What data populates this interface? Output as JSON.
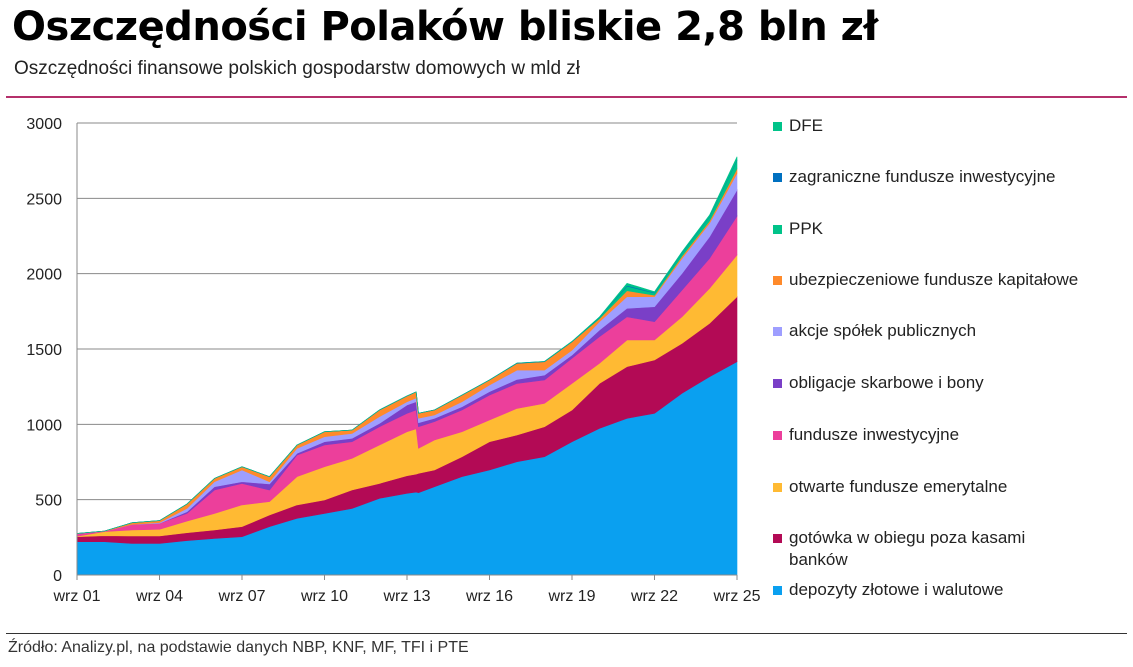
{
  "header": {
    "title": "Oszczędności Polaków bliskie 2,8 bln zł",
    "subtitle": "Oszczędności finansowe polskich gospodarstw domowych w mld zł"
  },
  "footer": {
    "source": "Źródło: Analizy.pl, na podstawie danych NBP, KNF, MF, TFI i PTE"
  },
  "chart_data": {
    "type": "area",
    "stacked": true,
    "title": "Oszczędności Polaków bliskie 2,8 bln zł",
    "subtitle": "Oszczędności finansowe polskich gospodarstw domowych w mld zł",
    "ylim": [
      0,
      3000
    ],
    "yticks": [
      "0",
      "500",
      "1000",
      "1500",
      "2000",
      "2500",
      "3000"
    ],
    "ytick_values": [
      0,
      500,
      1000,
      1500,
      2000,
      2500,
      3000
    ],
    "xticks": [
      "wrz 01",
      "wrz 04",
      "wrz 07",
      "wrz 10",
      "wrz 13",
      "wrz 16",
      "wrz 19",
      "wrz 22",
      "wrz 25"
    ],
    "xtick_dates": [
      "2001-09",
      "2004-09",
      "2007-09",
      "2010-09",
      "2013-09",
      "2016-09",
      "2019-09",
      "2022-09",
      "2025-09"
    ],
    "grid": "horizontal",
    "legend_position": "right",
    "x": [
      "2001-09",
      "2002-09",
      "2003-09",
      "2004-09",
      "2005-09",
      "2006-09",
      "2007-09",
      "2008-09",
      "2009-09",
      "2010-09",
      "2011-09",
      "2012-09",
      "2013-09",
      "2014-01",
      "2014-02",
      "2014-09",
      "2015-09",
      "2016-09",
      "2017-09",
      "2018-09",
      "2019-09",
      "2020-09",
      "2021-09",
      "2022-09",
      "2023-09",
      "2024-09",
      "2025-09"
    ],
    "series": [
      {
        "name": "depozyty złotowe i walutowe",
        "color": "#0aa0f0",
        "values": [
          221,
          221,
          210,
          210,
          228,
          243,
          254,
          321,
          376,
          409,
          442,
          509,
          542,
          550,
          546,
          586,
          653,
          697,
          752,
          785,
          885,
          973,
          1040,
          1073,
          1206,
          1316,
          1416
        ]
      },
      {
        "name": "gotówka w obiegu poza kasami banków",
        "color": "#b30a55",
        "values": [
          33,
          40,
          49,
          49,
          53,
          56,
          67,
          77,
          89,
          89,
          122,
          99,
          117,
          120,
          129,
          111,
          132,
          188,
          177,
          199,
          210,
          299,
          343,
          354,
          331,
          354,
          431
        ]
      },
      {
        "name": "otwarte fundusze emerytalne",
        "color": "#ffba33",
        "values": [
          3,
          27,
          40,
          44,
          77,
          110,
          144,
          89,
          188,
          221,
          210,
          255,
          292,
          300,
          166,
          199,
          166,
          144,
          177,
          155,
          177,
          133,
          177,
          133,
          177,
          232,
          277
        ]
      },
      {
        "name": "fundusze inwestycyjne",
        "color": "#ec3f9b",
        "values": [
          17,
          3,
          37,
          40,
          51,
          155,
          143,
          77,
          143,
          144,
          111,
          121,
          122,
          125,
          143,
          122,
          144,
          165,
          166,
          155,
          166,
          177,
          154,
          121,
          177,
          199,
          258
        ]
      },
      {
        "name": "obligacje skarbowe i bony",
        "color": "#7a3fc7",
        "values": [
          0,
          0,
          0,
          0,
          11,
          22,
          11,
          40,
          11,
          22,
          22,
          22,
          55,
          55,
          27,
          22,
          22,
          23,
          26,
          33,
          22,
          44,
          56,
          100,
          111,
          144,
          173
        ]
      },
      {
        "name": "akcje spółek publicznych",
        "color": "#9e9eff",
        "values": [
          0,
          0,
          0,
          5,
          22,
          33,
          78,
          15,
          34,
          33,
          33,
          45,
          22,
          25,
          29,
          22,
          33,
          44,
          62,
          33,
          33,
          55,
          77,
          66,
          99,
          89,
          111
        ]
      },
      {
        "name": "ubezpieczeniowe fundusze kapitałowe",
        "color": "#ff8a2b",
        "values": [
          2,
          1,
          11,
          13,
          29,
          22,
          22,
          34,
          22,
          33,
          22,
          44,
          38,
          40,
          33,
          33,
          44,
          33,
          45,
          56,
          55,
          20,
          40,
          10,
          15,
          15,
          30
        ]
      },
      {
        "name": "PPK",
        "color": "#00c389",
        "values": [
          0,
          0,
          0,
          0,
          0,
          0,
          0,
          0,
          0,
          0,
          0,
          0,
          0,
          0,
          0,
          0,
          0,
          0,
          0,
          0,
          0,
          8,
          30,
          15,
          20,
          28,
          55
        ]
      },
      {
        "name": "zagraniczne fundusze inwestycyjne",
        "color": "#0070c0",
        "values": [
          0,
          0,
          0,
          0,
          0,
          0,
          0,
          0,
          0,
          0,
          0,
          1,
          1,
          1,
          1,
          1,
          1,
          1,
          2,
          2,
          2,
          2,
          5,
          3,
          3,
          4,
          5
        ]
      },
      {
        "name": "DFE",
        "color": "#00c389",
        "values": [
          0,
          0,
          0,
          0,
          0,
          0,
          0,
          0,
          0,
          0,
          0,
          0,
          0,
          0,
          0,
          0,
          0,
          0,
          0,
          0,
          1,
          3,
          14,
          5,
          7,
          8,
          20
        ]
      }
    ],
    "legend": [
      {
        "label": "DFE",
        "color": "#00c389"
      },
      {
        "label": "zagraniczne fundusze inwestycyjne",
        "color": "#0070c0"
      },
      {
        "label": "PPK",
        "color": "#00c389"
      },
      {
        "label": "ubezpieczeniowe fundusze kapitałowe",
        "color": "#ff8a2b"
      },
      {
        "label": "akcje spółek publicznych",
        "color": "#9e9eff"
      },
      {
        "label": "obligacje skarbowe i bony",
        "color": "#7a3fc7"
      },
      {
        "label": "fundusze inwestycyjne",
        "color": "#ec3f9b"
      },
      {
        "label": "otwarte fundusze emerytalne",
        "color": "#ffba33"
      },
      {
        "label": "gotówka w obiegu poza kasami banków",
        "color": "#b30a55"
      },
      {
        "label": "depozyty złotowe i walutowe",
        "color": "#0aa0f0"
      }
    ]
  }
}
